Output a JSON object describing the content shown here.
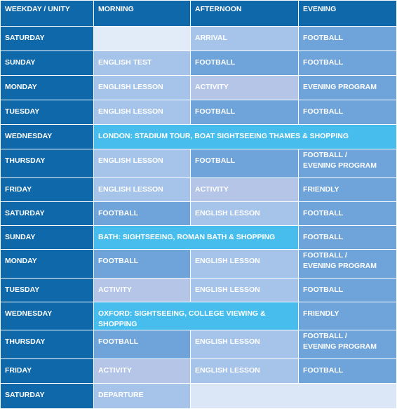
{
  "colors": {
    "hdr": "#0f68aa",
    "day": "#0f68aa",
    "mid": "#6fa4db",
    "lite": "#a6c4ea",
    "lav": "#b4c5e8",
    "cyan": "#47bdee",
    "blank": "#dbe7f6",
    "blankhi": "#e2ecf8"
  },
  "header": {
    "weekday_unity": "WEEKDAY / UNITY",
    "morning": "MORNING",
    "afternoon": "AFTERNOON",
    "evening": "EVENING"
  },
  "rows": [
    {
      "day": "SATURDAY",
      "cells": [
        {
          "text": "",
          "tone": "blankhi"
        },
        {
          "text": "ARRIVAL",
          "tone": "lite"
        },
        {
          "text": "FOOTBALL",
          "tone": "mid"
        }
      ]
    },
    {
      "day": "SUNDAY",
      "cells": [
        {
          "text": "ENGLISH TEST",
          "tone": "lite"
        },
        {
          "text": "FOOTBALL",
          "tone": "mid"
        },
        {
          "text": "FOOTBALL",
          "tone": "mid"
        }
      ]
    },
    {
      "day": "MONDAY",
      "cells": [
        {
          "text": "ENGLISH LESSON",
          "tone": "lite"
        },
        {
          "text": "ACTIVITY",
          "tone": "lav"
        },
        {
          "text": "EVENING PROGRAM",
          "tone": "mid"
        }
      ]
    },
    {
      "day": "TUESDAY",
      "cells": [
        {
          "text": "ENGLISH LESSON",
          "tone": "lite"
        },
        {
          "text": "FOOTBALL",
          "tone": "mid"
        },
        {
          "text": "FOOTBALL",
          "tone": "mid"
        }
      ]
    },
    {
      "day": "WEDNESDAY",
      "cells": [
        {
          "text": "LONDON: STADIUM TOUR, BOAT SIGHTSEEING THAMES & SHOPPING",
          "tone": "cyan",
          "span": 3
        }
      ]
    },
    {
      "day": "THURSDAY",
      "cells": [
        {
          "text": "ENGLISH LESSON",
          "tone": "lite"
        },
        {
          "text": "FOOTBALL",
          "tone": "mid"
        },
        {
          "text": "FOOTBALL /\nEVENING PROGRAM",
          "tone": "mid"
        }
      ]
    },
    {
      "day": "FRIDAY",
      "cells": [
        {
          "text": "ENGLISH LESSON",
          "tone": "lite"
        },
        {
          "text": "ACTIVITY",
          "tone": "lav"
        },
        {
          "text": "FRIENDLY",
          "tone": "mid"
        }
      ]
    },
    {
      "day": "SATURDAY",
      "cells": [
        {
          "text": "FOOTBALL",
          "tone": "mid"
        },
        {
          "text": "ENGLISH LESSON",
          "tone": "lite"
        },
        {
          "text": "FOOTBALL",
          "tone": "mid"
        }
      ]
    },
    {
      "day": "SUNDAY",
      "cells": [
        {
          "text": "BATH: SIGHTSEEING, ROMAN BATH & SHOPPING",
          "tone": "cyan",
          "span": 2
        },
        {
          "text": "FOOTBALL",
          "tone": "mid"
        }
      ]
    },
    {
      "day": "MONDAY",
      "cells": [
        {
          "text": "FOOTBALL",
          "tone": "mid"
        },
        {
          "text": "ENGLISH LESSON",
          "tone": "lite"
        },
        {
          "text": "FOOTBALL /\nEVENING PROGRAM",
          "tone": "mid"
        }
      ]
    },
    {
      "day": "TUESDAY",
      "cells": [
        {
          "text": "ACTIVITY",
          "tone": "lav"
        },
        {
          "text": "ENGLISH LESSON",
          "tone": "lite"
        },
        {
          "text": "FOOTBALL",
          "tone": "mid"
        }
      ]
    },
    {
      "day": "WEDNESDAY",
      "cells": [
        {
          "text": "OXFORD: SIGHTSEEING, COLLEGE VIEWING & SHOPPING",
          "tone": "cyan",
          "span": 2
        },
        {
          "text": "FRIENDLY",
          "tone": "mid"
        }
      ]
    },
    {
      "day": "THURSDAY",
      "cells": [
        {
          "text": "FOOTBALL",
          "tone": "mid"
        },
        {
          "text": "ENGLISH LESSON",
          "tone": "lite"
        },
        {
          "text": "FOOTBALL /\nEVENING PROGRAM",
          "tone": "mid"
        }
      ]
    },
    {
      "day": "FRIDAY",
      "cells": [
        {
          "text": "ACTIVITY",
          "tone": "lav"
        },
        {
          "text": "ENGLISH LESSON",
          "tone": "lite"
        },
        {
          "text": "FOOTBALL",
          "tone": "mid"
        }
      ]
    },
    {
      "day": "SATURDAY",
      "cells": [
        {
          "text": "DEPARTURE",
          "tone": "lite"
        },
        {
          "text": "",
          "tone": "blank",
          "span": 2
        }
      ]
    }
  ]
}
